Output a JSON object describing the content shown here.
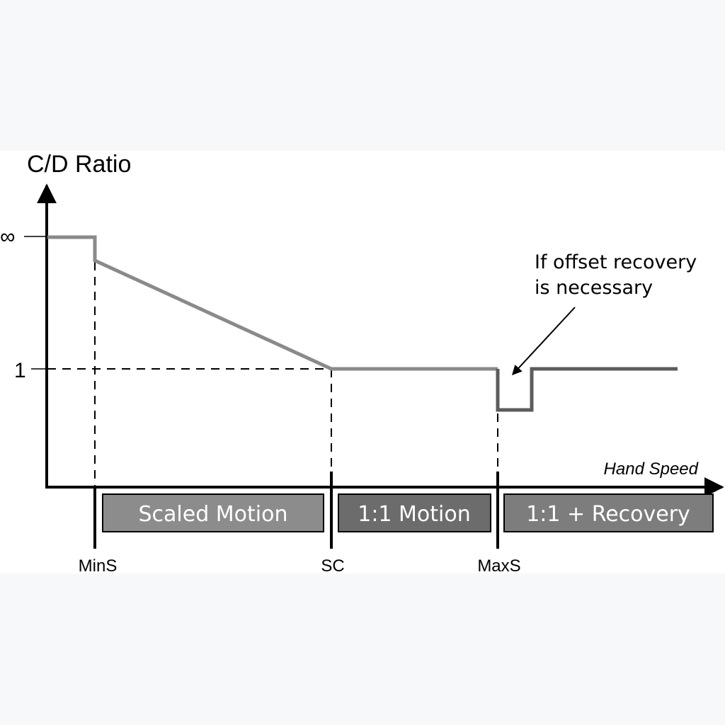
{
  "diagram": {
    "y_axis_label": "C/D Ratio",
    "y_ticks": {
      "infinity": "∞",
      "one": "1"
    },
    "x_axis_label": "Hand Speed",
    "x_markers": {
      "min_speed": "MinS",
      "scaling_constant": "SC",
      "max_speed": "MaxS"
    },
    "annotation": {
      "line1": "If offset recovery",
      "line2": "is necessary"
    },
    "regions": [
      {
        "label": "Scaled Motion",
        "color": "#8c8c8c"
      },
      {
        "label": "1:1 Motion",
        "color": "#6c6c6c"
      },
      {
        "label": "1:1 + Recovery",
        "color": "#7d7d7d"
      }
    ],
    "colors": {
      "curve_light": "#8a8a8a",
      "curve_dark": "#5c5c5c",
      "axis": "#000000"
    }
  }
}
